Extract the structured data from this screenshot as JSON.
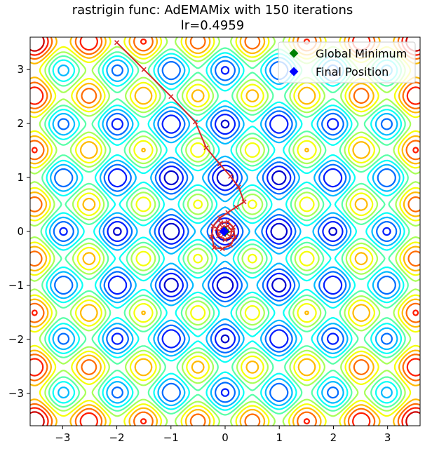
{
  "title_line1": "rastrigin func: AdEMAMix with 150 iterations",
  "title_line2": "lr=0.4959",
  "chart_data": {
    "type": "contour",
    "function": "rastrigin",
    "xlim": [
      -3.6,
      3.6
    ],
    "ylim": [
      -3.6,
      3.6
    ],
    "x_ticks": [
      -3,
      -2,
      -1,
      0,
      1,
      2,
      3
    ],
    "y_ticks": [
      -3,
      -2,
      -1,
      0,
      1,
      2,
      3
    ],
    "x_tick_labels": [
      "−3",
      "−2",
      "−1",
      "0",
      "1",
      "2",
      "3"
    ],
    "y_tick_labels": [
      "−3",
      "−2",
      "−1",
      "0",
      "1",
      "2",
      "3"
    ],
    "grid": false,
    "colormap": "jet",
    "trajectory": {
      "color": "#d62728",
      "marker": "x",
      "points": [
        [
          -2.0,
          3.5
        ],
        [
          -1.5,
          3.0
        ],
        [
          -1.0,
          2.5
        ],
        [
          -0.55,
          2.03
        ],
        [
          -0.35,
          1.55
        ],
        [
          -0.1,
          1.25
        ],
        [
          0.1,
          1.02
        ],
        [
          0.25,
          0.82
        ],
        [
          0.35,
          0.55
        ],
        [
          0.2,
          0.45
        ],
        [
          0.05,
          0.35
        ],
        [
          -0.1,
          0.25
        ],
        [
          -0.22,
          0.1
        ],
        [
          -0.25,
          -0.1
        ],
        [
          -0.2,
          -0.3
        ],
        [
          -0.05,
          -0.32
        ],
        [
          0.1,
          -0.25
        ],
        [
          0.18,
          -0.1
        ],
        [
          0.15,
          0.08
        ],
        [
          0.05,
          0.18
        ],
        [
          -0.08,
          0.16
        ],
        [
          -0.15,
          0.05
        ],
        [
          -0.12,
          -0.08
        ],
        [
          0.0,
          -0.15
        ],
        [
          0.1,
          -0.1
        ],
        [
          0.12,
          0.02
        ],
        [
          0.05,
          0.1
        ],
        [
          -0.05,
          0.08
        ],
        [
          -0.08,
          0.0
        ],
        [
          -0.03,
          -0.06
        ],
        [
          0.03,
          -0.04
        ],
        [
          0.04,
          0.02
        ],
        [
          0.0,
          0.03
        ],
        [
          -0.02,
          0.0
        ]
      ]
    },
    "markers": [
      {
        "label": "Global Minimum",
        "x": 0,
        "y": 0,
        "color": "#008000",
        "shape": "diamond"
      },
      {
        "label": "Final Position",
        "x": -0.02,
        "y": 0.0,
        "color": "#0000ff",
        "shape": "diamond"
      }
    ],
    "legend": {
      "location": "top-right",
      "entries": [
        {
          "label": "Global Minimum",
          "color": "#008000"
        },
        {
          "label": "Final Position",
          "color": "#0000ff"
        }
      ]
    }
  }
}
